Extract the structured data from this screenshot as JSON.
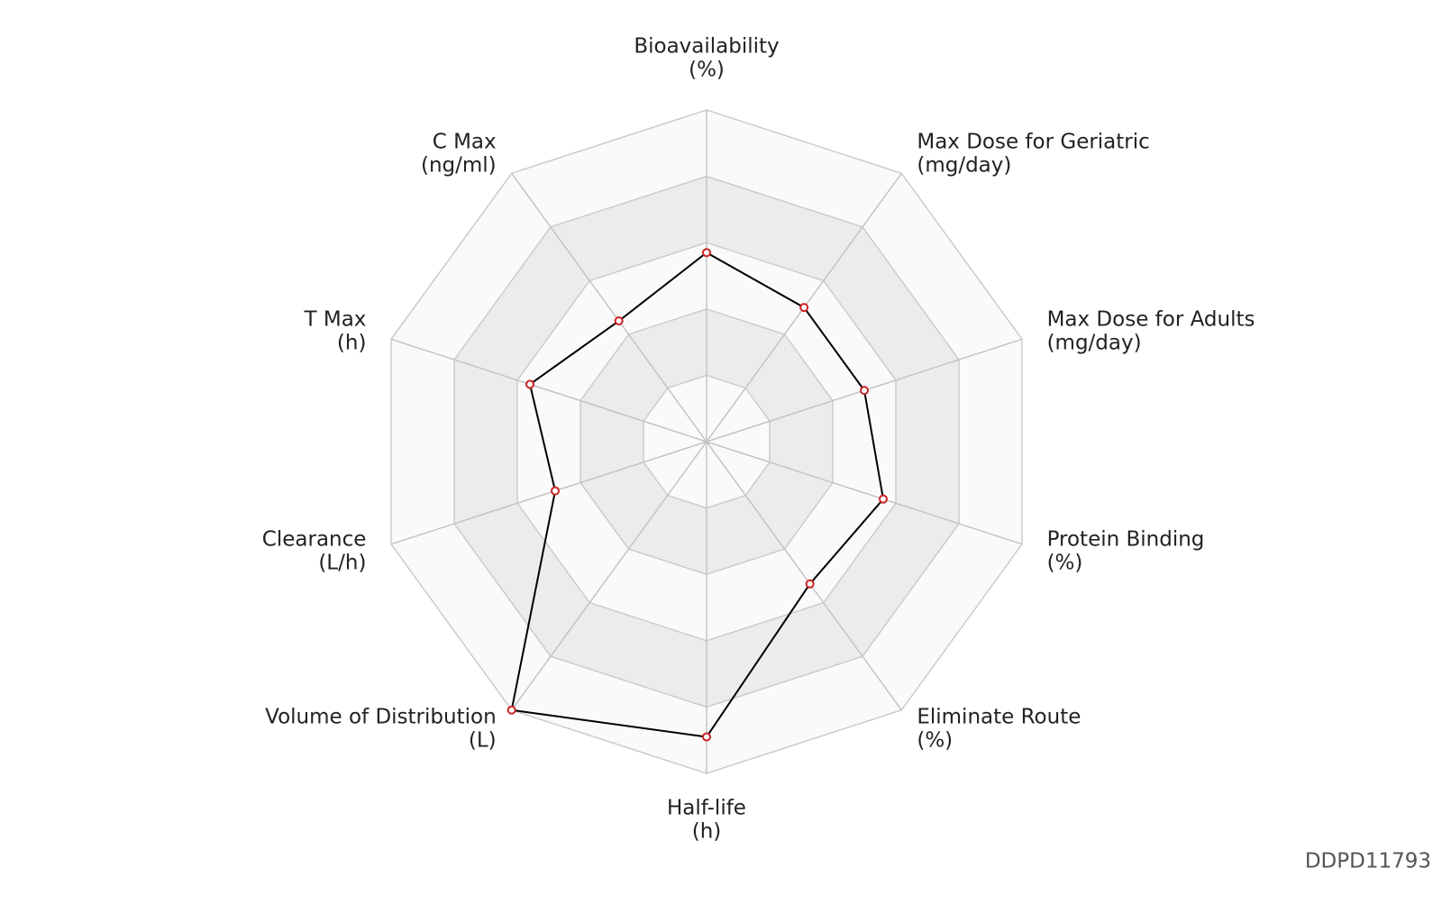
{
  "chart_data": {
    "type": "radar",
    "categories": [
      [
        "Bioavailability",
        "(%)"
      ],
      [
        "Max Dose for Geriatric",
        "(mg/day)"
      ],
      [
        "Max Dose for Adults",
        "(mg/day)"
      ],
      [
        "Protein Binding",
        "(%)"
      ],
      [
        "Eliminate Route",
        "(%)"
      ],
      [
        "Half-life",
        "(h)"
      ],
      [
        "Volume of Distribution",
        "(L)"
      ],
      [
        "Clearance",
        "(L/h)"
      ],
      [
        "T Max",
        "(h)"
      ],
      [
        "C Max",
        "(ng/ml)"
      ]
    ],
    "values": [
      0.57,
      0.5,
      0.5,
      0.56,
      0.53,
      0.89,
      1.0,
      0.48,
      0.56,
      0.45
    ],
    "rlim": [
      0,
      1
    ],
    "rticks": [
      0.2,
      0.4,
      0.6,
      0.8,
      1.0
    ],
    "color": "#000000",
    "marker_color": "#cc2222",
    "band_colors": [
      "#ffffff",
      "#ececec"
    ],
    "watermark": "DDPD11793"
  }
}
